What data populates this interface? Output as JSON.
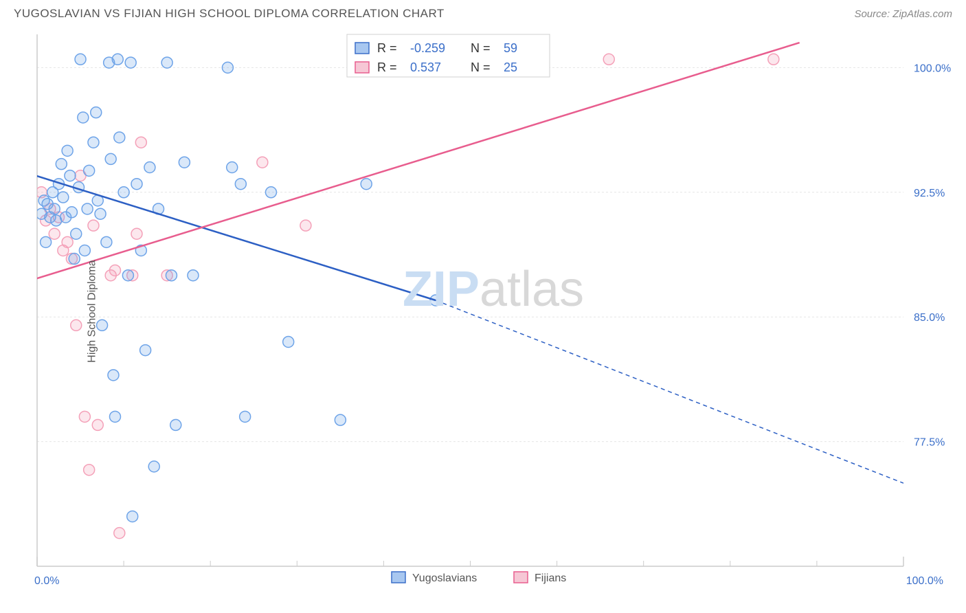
{
  "title": "YUGOSLAVIAN VS FIJIAN HIGH SCHOOL DIPLOMA CORRELATION CHART",
  "source": "Source: ZipAtlas.com",
  "ylabel": "High School Diploma",
  "watermark": {
    "zip": "ZIP",
    "atlas": "atlas"
  },
  "chart": {
    "type": "scatter",
    "background_color": "#ffffff",
    "grid_color": "#e5e5e5",
    "border_color": "#cccccc",
    "xlim": [
      0,
      100
    ],
    "ylim": [
      70,
      102
    ],
    "xticks_major": [
      0,
      100
    ],
    "xticks_minor": [
      10,
      20,
      30,
      40,
      50,
      60,
      70,
      80,
      90
    ],
    "yticks": [
      77.5,
      85.0,
      92.5,
      100.0
    ],
    "ytick_labels": [
      "77.5%",
      "85.0%",
      "92.5%",
      "100.0%"
    ],
    "x_labels": [
      "0.0%",
      "100.0%"
    ],
    "marker_radius": 8,
    "marker_stroke_width": 1.5,
    "marker_fill_opacity": 0.25,
    "line_width": 2.5,
    "series": [
      {
        "name": "Yugoslavians",
        "color": "#6da3e8",
        "line_color": "#2c5fc4",
        "r": "-0.259",
        "n": "59",
        "line": {
          "x1": -2,
          "y1": 93.8,
          "x2": 46,
          "y2": 86.0
        },
        "line_extend": {
          "x1": 46,
          "y1": 86.0,
          "x2": 100,
          "y2": 75.0,
          "dash": "6,5"
        },
        "points": [
          [
            0.5,
            91.2
          ],
          [
            0.8,
            92.0
          ],
          [
            1.0,
            89.5
          ],
          [
            1.2,
            91.8
          ],
          [
            1.5,
            91.0
          ],
          [
            1.8,
            92.5
          ],
          [
            2.0,
            91.5
          ],
          [
            2.2,
            90.8
          ],
          [
            2.5,
            93.0
          ],
          [
            2.8,
            94.2
          ],
          [
            3.0,
            92.2
          ],
          [
            3.3,
            91.0
          ],
          [
            3.5,
            95.0
          ],
          [
            3.8,
            93.5
          ],
          [
            4.0,
            91.3
          ],
          [
            4.3,
            88.5
          ],
          [
            4.5,
            90.0
          ],
          [
            4.8,
            92.8
          ],
          [
            5.0,
            100.5
          ],
          [
            5.3,
            97.0
          ],
          [
            5.5,
            89.0
          ],
          [
            5.8,
            91.5
          ],
          [
            6.0,
            93.8
          ],
          [
            6.5,
            95.5
          ],
          [
            6.8,
            97.3
          ],
          [
            7.0,
            92.0
          ],
          [
            7.3,
            91.2
          ],
          [
            7.5,
            84.5
          ],
          [
            8.0,
            89.5
          ],
          [
            8.3,
            100.3
          ],
          [
            8.5,
            94.5
          ],
          [
            8.8,
            81.5
          ],
          [
            9.0,
            79.0
          ],
          [
            9.3,
            100.5
          ],
          [
            9.5,
            95.8
          ],
          [
            10.0,
            92.5
          ],
          [
            10.5,
            87.5
          ],
          [
            10.8,
            100.3
          ],
          [
            11.0,
            73.0
          ],
          [
            11.5,
            93.0
          ],
          [
            12.0,
            89.0
          ],
          [
            12.5,
            83.0
          ],
          [
            13.0,
            94.0
          ],
          [
            13.5,
            76.0
          ],
          [
            14.0,
            91.5
          ],
          [
            15.0,
            100.3
          ],
          [
            15.5,
            87.5
          ],
          [
            16.0,
            78.5
          ],
          [
            17.0,
            94.3
          ],
          [
            18.0,
            87.5
          ],
          [
            22.0,
            100.0
          ],
          [
            22.5,
            94.0
          ],
          [
            23.5,
            93.0
          ],
          [
            24.0,
            79.0
          ],
          [
            27.0,
            92.5
          ],
          [
            29.0,
            83.5
          ],
          [
            35.0,
            78.8
          ],
          [
            38.0,
            93.0
          ],
          [
            46.0,
            86.0
          ]
        ]
      },
      {
        "name": "Fijians",
        "color": "#f4a0b8",
        "line_color": "#e85d8e",
        "r": "0.537",
        "n": "25",
        "line": {
          "x1": -2,
          "y1": 87.0,
          "x2": 88,
          "y2": 101.5
        },
        "points": [
          [
            0.5,
            92.5
          ],
          [
            1.0,
            90.8
          ],
          [
            1.5,
            91.5
          ],
          [
            2.0,
            90.0
          ],
          [
            2.5,
            91.0
          ],
          [
            3.0,
            89.0
          ],
          [
            3.5,
            89.5
          ],
          [
            4.0,
            88.5
          ],
          [
            4.5,
            84.5
          ],
          [
            5.0,
            93.5
          ],
          [
            5.5,
            79.0
          ],
          [
            6.0,
            75.8
          ],
          [
            6.5,
            90.5
          ],
          [
            7.0,
            78.5
          ],
          [
            8.5,
            87.5
          ],
          [
            9.0,
            87.8
          ],
          [
            9.5,
            72.0
          ],
          [
            11.0,
            87.5
          ],
          [
            11.5,
            90.0
          ],
          [
            12.0,
            95.5
          ],
          [
            15.0,
            87.5
          ],
          [
            26.0,
            94.3
          ],
          [
            31.0,
            90.5
          ],
          [
            66.0,
            100.5
          ],
          [
            85.0,
            100.5
          ]
        ]
      }
    ]
  },
  "stats_legend": {
    "r_label": "R  =",
    "n_label": "N  =",
    "rows": [
      {
        "swatch": "#a8c7f0",
        "swatch_border": "#3b6fc9",
        "r": "-0.259",
        "n": "59"
      },
      {
        "swatch": "#f6c7d5",
        "swatch_border": "#e85d8e",
        "r": "0.537",
        "n": "25"
      }
    ]
  },
  "bottom_legend": {
    "items": [
      {
        "swatch": "#a8c7f0",
        "swatch_border": "#3b6fc9",
        "label": "Yugoslavians"
      },
      {
        "swatch": "#f6c7d5",
        "swatch_border": "#e85d8e",
        "label": "Fijians"
      }
    ]
  }
}
